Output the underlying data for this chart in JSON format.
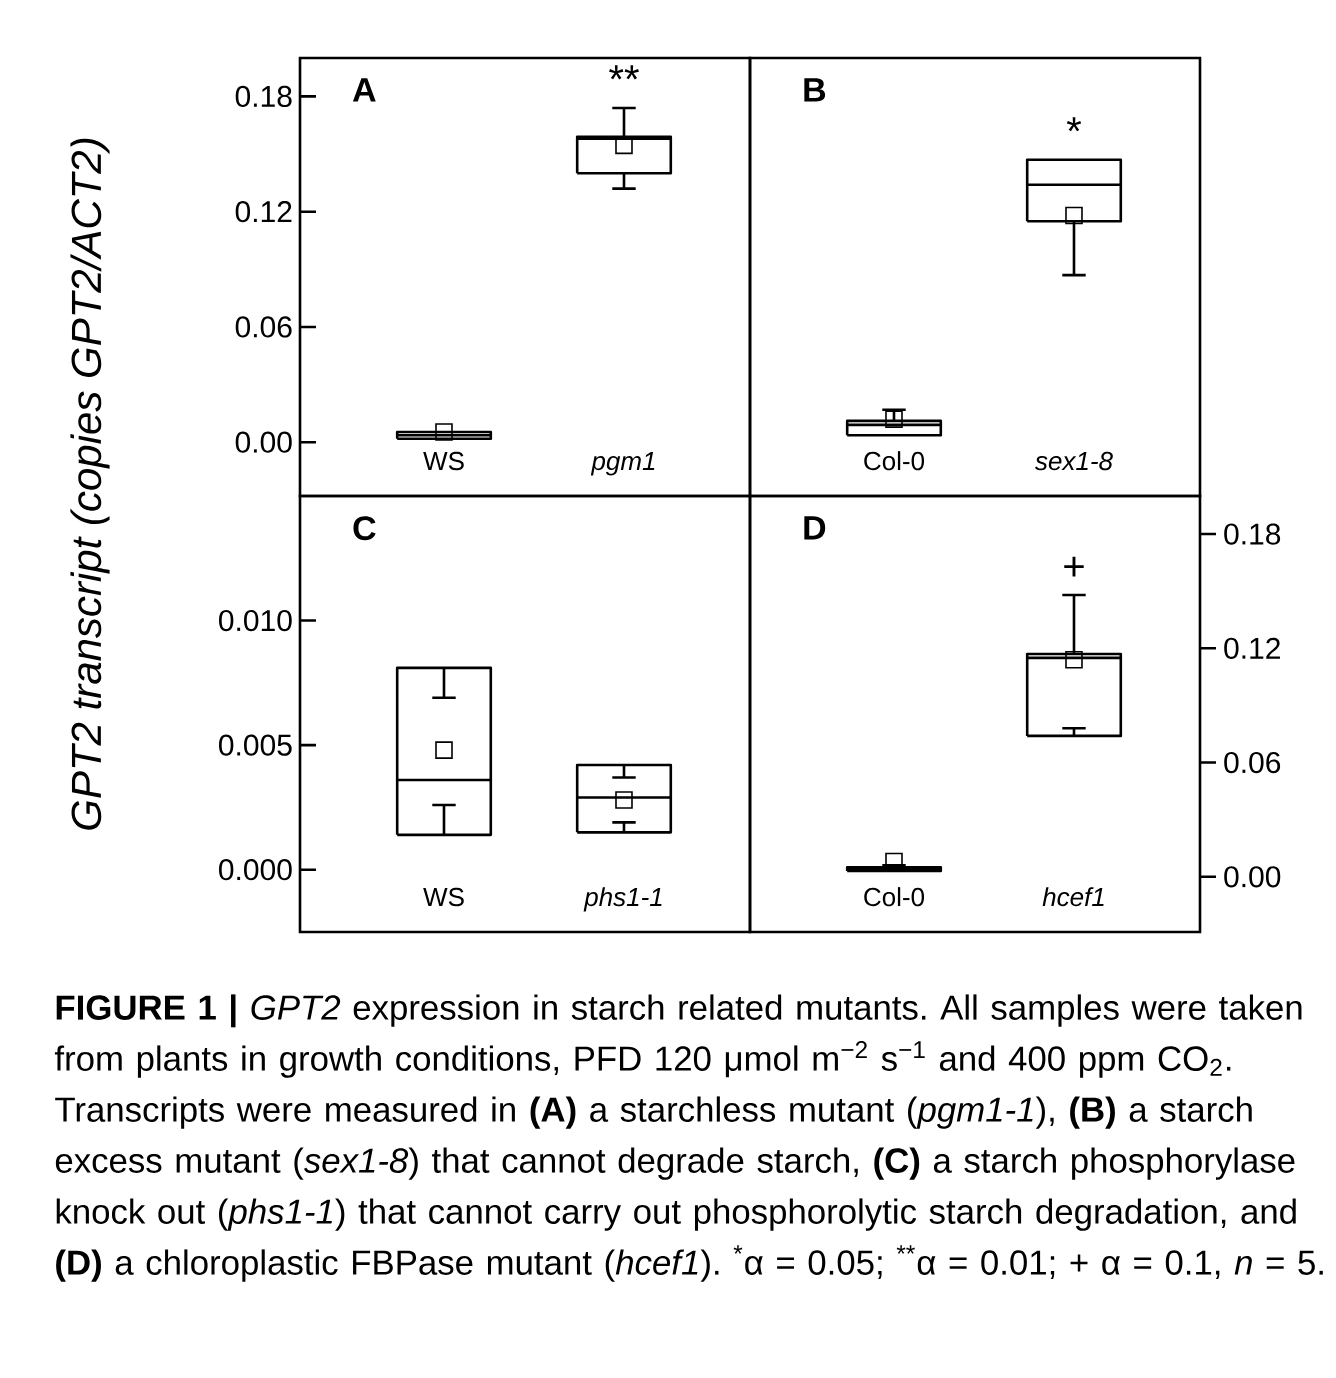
{
  "chart_data": [
    {
      "type": "box",
      "title": "A",
      "ylabel": "GPT2 transcript (copies GPT2/ACT2)",
      "categories": [
        "WS",
        "pgm1"
      ],
      "ylim": [
        -0.028,
        0.2
      ],
      "yticks": [
        {
          "value": 0,
          "label": "0.00"
        },
        {
          "value": 0.06,
          "label": "0.06"
        },
        {
          "value": 0.12,
          "label": "0.12"
        },
        {
          "value": 0.18,
          "label": "0.18"
        }
      ],
      "boxes": [
        {
          "low": 0.0018,
          "q1": 0.0018,
          "median": 0.0036,
          "q3": 0.0053,
          "high": 0.0053,
          "mean": 0.0053
        },
        {
          "low": 0.132,
          "q1": 0.14,
          "median": 0.158,
          "q3": 0.159,
          "high": 0.174,
          "mean": 0.1545
        }
      ],
      "annotations": [
        "**",
        "**FIGURE 1 |** *GPT2* expression in starch related mutants. All samples were taken from plants in growth conditions, PFD 120 μmol m$^{−2}$ s$^{−1}$ and 400 ppm CO$_{2}$. Transcripts were measured in **(A)** a starchless mutant (*pgm1-1*), **(B)** a starch excess mutant (*sex1-8*) that cannot degrade starch, **(C)** a starch phosphorylase knock out (*phs1-1*) that cannot carry out phosphorolytic starch degradation, and **(D)** a chloroplastic FBPase mutant (*hcef1*). $^{*}$α = 0.05; $^{**}$α = 0.01; + α = 0.1, *n* = 5."
      ]
    },
    {
      "type": "box",
      "title": "B",
      "categories": [
        "Col-0",
        "sex1-8"
      ],
      "ylim": [
        -0.028,
        0.2
      ],
      "tick_labels": "x",
      "boxes": [
        {
          "low": 0.0036,
          "q1": 0.0036,
          "median": 0.009,
          "q3": 0.0111,
          "high": 0.0169,
          "mean": 0.012
        },
        {
          "low": 0.087,
          "q1": 0.115,
          "median": 0.134,
          "q3": 0.147,
          "high": 0.147,
          "mean": 0.118
        }
      ],
      "annotations": [
        "*"
      ]
    },
    {
      "type": "box",
      "title": "C",
      "categories": [
        "WS",
        "phs1-1"
      ],
      "ylim": [
        -0.0025,
        0.015
      ],
      "yticks": [
        {
          "value": 0,
          "label": "0.000"
        },
        {
          "value": 0.005,
          "label": "0.005"
        },
        {
          "value": 0.01,
          "label": "0.010"
        }
      ],
      "boxes": [
        {
          "low": 0.0026,
          "q1": 0.0014,
          "median": 0.0036,
          "q3": 0.0081,
          "high": 0.0069,
          "mean": 0.0048
        },
        {
          "low": 0.0019,
          "q1": 0.0015,
          "median": 0.0029,
          "q3": 0.0042,
          "high": 0.0037,
          "mean": 0.0028
        }
      ]
    },
    {
      "type": "box",
      "title": "D",
      "categories": [
        "Col-0",
        "hcef1"
      ],
      "y2lim": [
        -0.029,
        0.2
      ],
      "y2ticks": [
        {
          "value": 0,
          "label": "0.00"
        },
        {
          "value": 0.06,
          "label": "0.06"
        },
        {
          "value": 0.12,
          "label": "0.12"
        },
        {
          "value": 0.18,
          "label": "0.18"
        }
      ],
      "series": [
        {
          "axis": "y2",
          "boxes": [
            {
              "low": 0.003,
              "q1": 0.003,
              "median": 0.004,
              "q3": 0.005,
              "high": 0.006,
              "mean": 0.008
            },
            {
              "low": 0.078,
              "q1": 0.074,
              "median": 0.115,
              "q3": 0.117,
              "high": 0.148,
              "mean": 0.114
            }
          ]
        }
      ],
      "annotations": [
        "+"
      ]
    }
  ]
}
